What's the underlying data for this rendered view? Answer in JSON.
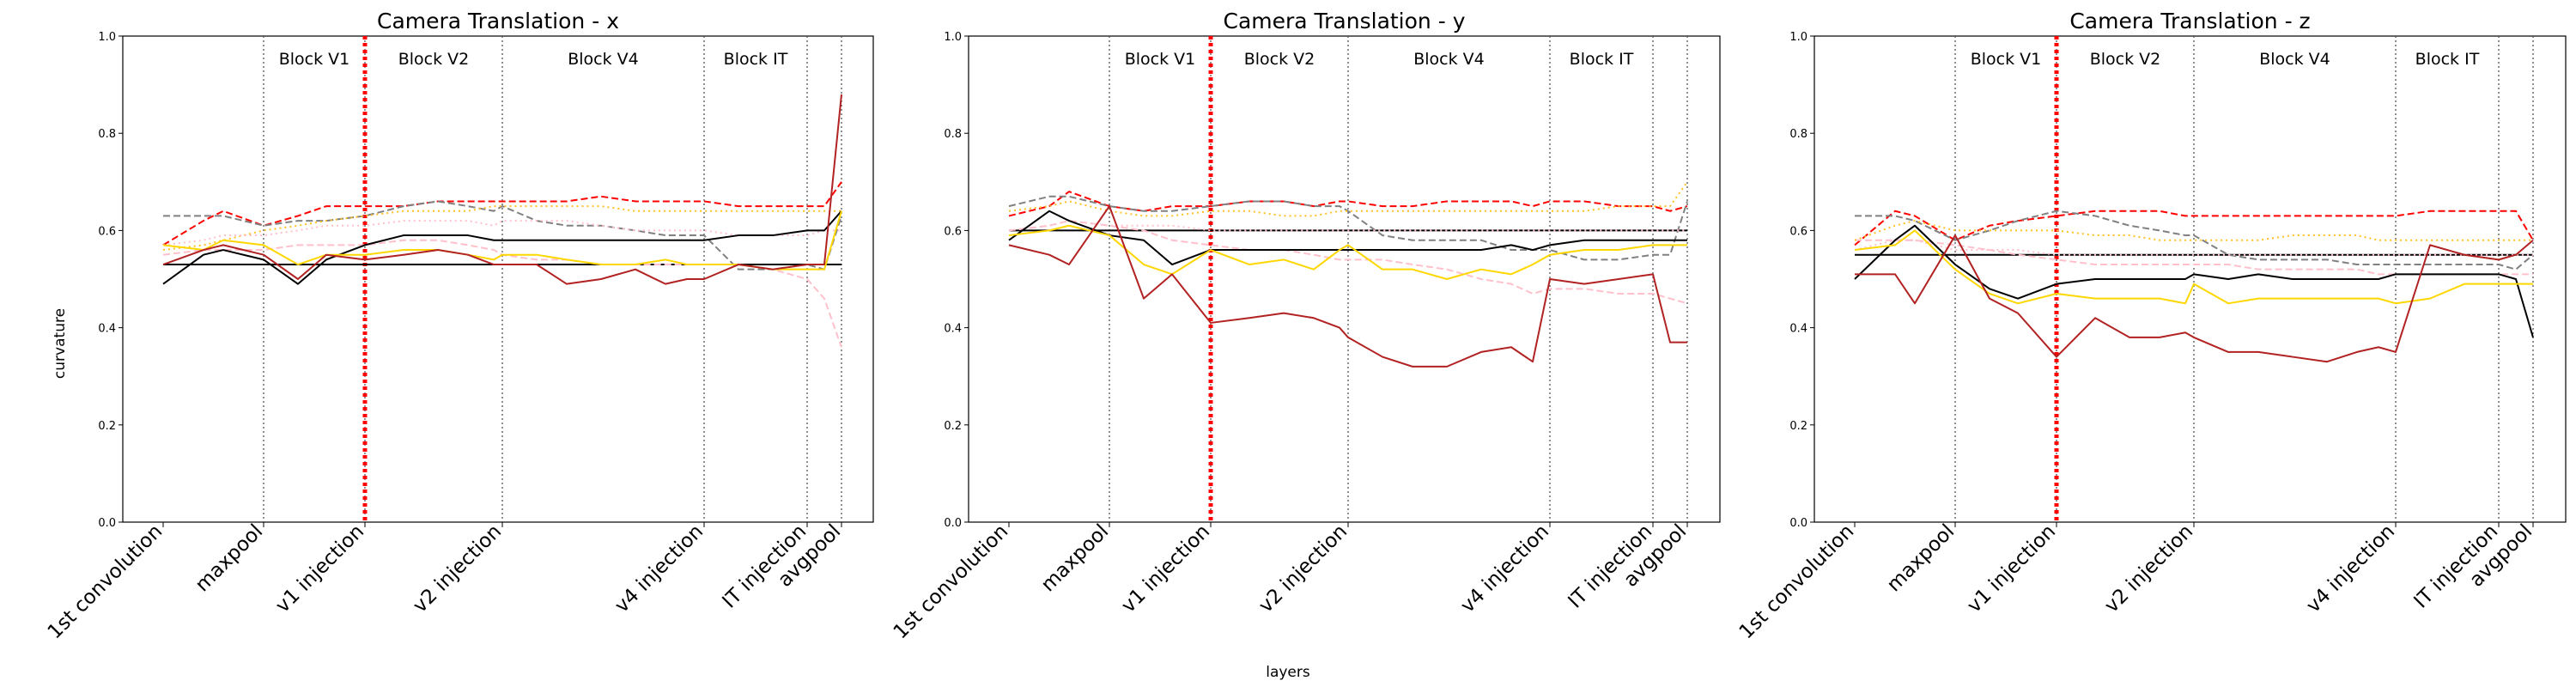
{
  "figure": {
    "xlabel": "layers",
    "ylabel": "curvature"
  },
  "chart_data": [
    {
      "type": "line",
      "title": "Camera Translation - x",
      "x": [
        "1st convolution",
        "",
        "",
        "maxpool",
        "",
        "",
        "v1 injection",
        "",
        "",
        "",
        "",
        "v2 injection",
        "",
        "",
        "",
        "",
        "",
        "",
        "v4 injection",
        "",
        "",
        "IT injection",
        "",
        "avgpool"
      ],
      "ylim": [
        0.0,
        1.0
      ],
      "yticks": [
        "0.0",
        "0.2",
        "0.4",
        "0.6",
        "0.8",
        "1.0"
      ],
      "blocks": [
        "Block V1",
        "Block V2",
        "Block V4",
        "Block IT"
      ],
      "reference_line": 0.53,
      "series": [
        {
          "color": "#ff0000",
          "style": "dashed",
          "values": [
            0.57,
            0.62,
            0.64,
            0.61,
            0.63,
            0.65,
            0.65,
            0.65,
            0.66,
            0.66,
            0.66,
            0.66,
            0.66,
            0.66,
            0.67,
            0.66,
            0.66,
            0.66,
            0.66,
            0.65,
            0.65,
            0.65,
            0.65,
            0.7
          ]
        },
        {
          "color": "#808080",
          "style": "dashed",
          "values": [
            0.63,
            0.63,
            0.63,
            0.61,
            0.62,
            0.62,
            0.63,
            0.65,
            0.66,
            0.65,
            0.64,
            0.65,
            0.62,
            0.61,
            0.61,
            0.6,
            0.59,
            0.59,
            0.59,
            0.52,
            0.52,
            0.53,
            0.52,
            0.63
          ]
        },
        {
          "color": "#ffc0cb",
          "style": "dashed",
          "values": [
            0.55,
            0.56,
            0.56,
            0.56,
            0.57,
            0.57,
            0.57,
            0.58,
            0.58,
            0.57,
            0.56,
            0.55,
            0.54,
            0.54,
            0.53,
            0.53,
            0.53,
            0.53,
            0.53,
            0.53,
            0.52,
            0.5,
            0.46,
            0.36
          ]
        },
        {
          "color": "#ffc125",
          "style": "dotted",
          "values": [
            0.56,
            0.57,
            0.58,
            0.6,
            0.61,
            0.62,
            0.63,
            0.64,
            0.64,
            0.64,
            0.65,
            0.65,
            0.65,
            0.65,
            0.65,
            0.64,
            0.64,
            0.64,
            0.64,
            0.64,
            0.64,
            0.64,
            0.64,
            0.64
          ]
        },
        {
          "color": "#ffc0cb",
          "style": "dotted",
          "values": [
            0.57,
            0.58,
            0.59,
            0.59,
            0.6,
            0.61,
            0.61,
            0.62,
            0.62,
            0.62,
            0.61,
            0.62,
            0.62,
            0.62,
            0.61,
            0.6,
            0.6,
            0.6,
            0.6,
            0.59,
            0.59,
            0.59,
            0.6,
            0.6
          ]
        },
        {
          "color": "#000000",
          "style": "solid",
          "values": [
            0.49,
            0.55,
            0.56,
            0.54,
            0.49,
            0.54,
            0.57,
            0.59,
            0.59,
            0.59,
            0.58,
            0.58,
            0.58,
            0.58,
            0.58,
            0.58,
            0.58,
            0.58,
            0.58,
            0.59,
            0.59,
            0.6,
            0.6,
            0.64
          ]
        },
        {
          "color": "#ffd700",
          "style": "solid",
          "values": [
            0.57,
            0.56,
            0.58,
            0.57,
            0.53,
            0.55,
            0.55,
            0.56,
            0.56,
            0.55,
            0.54,
            0.55,
            0.55,
            0.54,
            0.53,
            0.53,
            0.54,
            0.53,
            0.53,
            0.53,
            0.52,
            0.52,
            0.52,
            0.64
          ]
        },
        {
          "color": "#b22222",
          "style": "solid",
          "values": [
            0.53,
            0.56,
            0.57,
            0.55,
            0.5,
            0.55,
            0.54,
            0.55,
            0.56,
            0.55,
            0.53,
            0.53,
            0.53,
            0.49,
            0.5,
            0.52,
            0.49,
            0.5,
            0.5,
            0.53,
            0.52,
            0.53,
            0.53,
            0.88
          ]
        }
      ]
    },
    {
      "type": "line",
      "title": "Camera Translation - y",
      "x": [
        "1st convolution",
        "",
        "",
        "maxpool",
        "",
        "",
        "v1 injection",
        "",
        "",
        "",
        "",
        "v2 injection",
        "",
        "",
        "",
        "",
        "",
        "",
        "v4 injection",
        "",
        "",
        "IT injection",
        "",
        "avgpool"
      ],
      "ylim": [
        0.0,
        1.0
      ],
      "yticks": [
        "0.0",
        "0.2",
        "0.4",
        "0.6",
        "0.8",
        "1.0"
      ],
      "blocks": [
        "Block V1",
        "Block V2",
        "Block V4",
        "Block IT"
      ],
      "reference_line": 0.6,
      "series": [
        {
          "color": "#ff0000",
          "style": "dashed",
          "values": [
            0.63,
            0.65,
            0.68,
            0.65,
            0.64,
            0.65,
            0.65,
            0.66,
            0.66,
            0.65,
            0.66,
            0.66,
            0.65,
            0.65,
            0.66,
            0.66,
            0.66,
            0.65,
            0.66,
            0.66,
            0.65,
            0.65,
            0.64,
            0.65
          ]
        },
        {
          "color": "#808080",
          "style": "dashed",
          "values": [
            0.65,
            0.67,
            0.67,
            0.65,
            0.64,
            0.64,
            0.65,
            0.66,
            0.66,
            0.65,
            0.65,
            0.64,
            0.59,
            0.58,
            0.58,
            0.58,
            0.56,
            0.56,
            0.56,
            0.54,
            0.54,
            0.55,
            0.55,
            0.66
          ]
        },
        {
          "color": "#ffc0cb",
          "style": "dashed",
          "values": [
            0.6,
            0.61,
            0.62,
            0.61,
            0.6,
            0.58,
            0.57,
            0.56,
            0.56,
            0.55,
            0.54,
            0.54,
            0.54,
            0.53,
            0.52,
            0.5,
            0.49,
            0.47,
            0.48,
            0.48,
            0.47,
            0.47,
            0.46,
            0.45
          ]
        },
        {
          "color": "#ffc125",
          "style": "dotted",
          "values": [
            0.64,
            0.65,
            0.66,
            0.64,
            0.63,
            0.63,
            0.64,
            0.64,
            0.63,
            0.63,
            0.64,
            0.64,
            0.64,
            0.64,
            0.64,
            0.64,
            0.64,
            0.64,
            0.64,
            0.64,
            0.65,
            0.65,
            0.65,
            0.7
          ]
        },
        {
          "color": "#ffc0cb",
          "style": "dotted",
          "values": [
            0.6,
            0.61,
            0.62,
            0.61,
            0.61,
            0.61,
            0.6,
            0.6,
            0.6,
            0.6,
            0.6,
            0.6,
            0.6,
            0.6,
            0.6,
            0.6,
            0.6,
            0.6,
            0.6,
            0.6,
            0.6,
            0.6,
            0.6,
            0.6
          ]
        },
        {
          "color": "#000000",
          "style": "solid",
          "values": [
            0.58,
            0.64,
            0.62,
            0.59,
            0.58,
            0.53,
            0.56,
            0.56,
            0.56,
            0.56,
            0.56,
            0.56,
            0.56,
            0.56,
            0.56,
            0.56,
            0.57,
            0.56,
            0.57,
            0.58,
            0.58,
            0.58,
            0.58,
            0.58
          ]
        },
        {
          "color": "#ffd700",
          "style": "solid",
          "values": [
            0.59,
            0.6,
            0.61,
            0.59,
            0.53,
            0.51,
            0.56,
            0.53,
            0.54,
            0.52,
            0.56,
            0.57,
            0.52,
            0.52,
            0.5,
            0.52,
            0.51,
            0.53,
            0.55,
            0.56,
            0.56,
            0.57,
            0.57,
            0.57
          ]
        },
        {
          "color": "#b22222",
          "style": "solid",
          "values": [
            0.57,
            0.55,
            0.53,
            0.65,
            0.46,
            0.51,
            0.41,
            0.42,
            0.43,
            0.42,
            0.4,
            0.38,
            0.34,
            0.32,
            0.32,
            0.35,
            0.36,
            0.33,
            0.5,
            0.49,
            0.5,
            0.51,
            0.37,
            0.37
          ]
        }
      ]
    },
    {
      "type": "line",
      "title": "Camera Translation - z",
      "x": [
        "1st convolution",
        "",
        "",
        "maxpool",
        "",
        "",
        "v1 injection",
        "",
        "",
        "",
        "",
        "v2 injection",
        "",
        "",
        "",
        "",
        "",
        "",
        "v4 injection",
        "",
        "",
        "IT injection",
        "",
        "avgpool"
      ],
      "ylim": [
        0.0,
        1.0
      ],
      "yticks": [
        "0.0",
        "0.2",
        "0.4",
        "0.6",
        "0.8",
        "1.0"
      ],
      "blocks": [
        "Block V1",
        "Block V2",
        "Block V4",
        "Block IT"
      ],
      "reference_line": 0.55,
      "series": [
        {
          "color": "#ff0000",
          "style": "dashed",
          "values": [
            0.57,
            0.64,
            0.63,
            0.58,
            0.61,
            0.62,
            0.63,
            0.64,
            0.64,
            0.64,
            0.63,
            0.63,
            0.63,
            0.63,
            0.63,
            0.63,
            0.63,
            0.63,
            0.63,
            0.64,
            0.64,
            0.64,
            0.64,
            0.58
          ]
        },
        {
          "color": "#808080",
          "style": "dashed",
          "values": [
            0.63,
            0.63,
            0.62,
            0.58,
            0.6,
            0.62,
            0.64,
            0.63,
            0.61,
            0.6,
            0.59,
            0.59,
            0.55,
            0.54,
            0.54,
            0.54,
            0.53,
            0.53,
            0.53,
            0.53,
            0.53,
            0.53,
            0.52,
            0.55
          ]
        },
        {
          "color": "#ffc0cb",
          "style": "dashed",
          "values": [
            0.58,
            0.58,
            0.58,
            0.57,
            0.56,
            0.55,
            0.54,
            0.53,
            0.53,
            0.53,
            0.53,
            0.53,
            0.53,
            0.52,
            0.52,
            0.52,
            0.52,
            0.51,
            0.51,
            0.51,
            0.51,
            0.51,
            0.51,
            0.51
          ]
        },
        {
          "color": "#ffc125",
          "style": "dotted",
          "values": [
            0.58,
            0.61,
            0.62,
            0.6,
            0.6,
            0.6,
            0.6,
            0.59,
            0.59,
            0.58,
            0.58,
            0.58,
            0.58,
            0.58,
            0.59,
            0.59,
            0.59,
            0.58,
            0.58,
            0.58,
            0.58,
            0.58,
            0.58,
            0.58
          ]
        },
        {
          "color": "#ffc0cb",
          "style": "dotted",
          "values": [
            0.56,
            0.58,
            0.58,
            0.56,
            0.56,
            0.56,
            0.55,
            0.55,
            0.55,
            0.55,
            0.55,
            0.55,
            0.55,
            0.55,
            0.55,
            0.55,
            0.55,
            0.55,
            0.55,
            0.55,
            0.55,
            0.55,
            0.55,
            0.55
          ]
        },
        {
          "color": "#000000",
          "style": "solid",
          "values": [
            0.5,
            0.58,
            0.61,
            0.53,
            0.48,
            0.46,
            0.49,
            0.5,
            0.5,
            0.5,
            0.5,
            0.51,
            0.5,
            0.51,
            0.5,
            0.5,
            0.5,
            0.5,
            0.51,
            0.51,
            0.51,
            0.51,
            0.5,
            0.38
          ]
        },
        {
          "color": "#ffd700",
          "style": "solid",
          "values": [
            0.56,
            0.57,
            0.6,
            0.52,
            0.47,
            0.45,
            0.47,
            0.46,
            0.46,
            0.46,
            0.45,
            0.49,
            0.45,
            0.46,
            0.46,
            0.46,
            0.46,
            0.46,
            0.45,
            0.46,
            0.49,
            0.49,
            0.49,
            0.49
          ]
        },
        {
          "color": "#b22222",
          "style": "solid",
          "values": [
            0.51,
            0.51,
            0.45,
            0.59,
            0.46,
            0.43,
            0.34,
            0.42,
            0.38,
            0.38,
            0.39,
            0.38,
            0.35,
            0.35,
            0.34,
            0.33,
            0.35,
            0.36,
            0.35,
            0.57,
            0.55,
            0.54,
            0.55,
            0.58
          ]
        }
      ]
    }
  ]
}
